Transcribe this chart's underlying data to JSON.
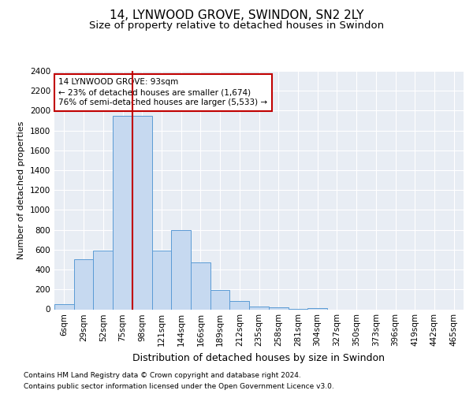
{
  "title1": "14, LYNWOOD GROVE, SWINDON, SN2 2LY",
  "title2": "Size of property relative to detached houses in Swindon",
  "xlabel": "Distribution of detached houses by size in Swindon",
  "ylabel": "Number of detached properties",
  "footnote1": "Contains HM Land Registry data © Crown copyright and database right 2024.",
  "footnote2": "Contains public sector information licensed under the Open Government Licence v3.0.",
  "categories": [
    "6sqm",
    "29sqm",
    "52sqm",
    "75sqm",
    "98sqm",
    "121sqm",
    "144sqm",
    "166sqm",
    "189sqm",
    "212sqm",
    "235sqm",
    "258sqm",
    "281sqm",
    "304sqm",
    "327sqm",
    "350sqm",
    "373sqm",
    "396sqm",
    "419sqm",
    "442sqm",
    "465sqm"
  ],
  "values": [
    50,
    500,
    590,
    1950,
    1950,
    590,
    800,
    470,
    195,
    80,
    25,
    20,
    5,
    10,
    0,
    0,
    0,
    0,
    0,
    0,
    0
  ],
  "bar_color": "#c6d9f0",
  "bar_edge_color": "#5b9bd5",
  "vline_x_index": 4,
  "vline_color": "#c00000",
  "annotation_title": "14 LYNWOOD GROVE: 93sqm",
  "annotation_line2": "← 23% of detached houses are smaller (1,674)",
  "annotation_line3": "76% of semi-detached houses are larger (5,533) →",
  "annotation_box_color": "#c00000",
  "ylim": [
    0,
    2400
  ],
  "yticks": [
    0,
    200,
    400,
    600,
    800,
    1000,
    1200,
    1400,
    1600,
    1800,
    2000,
    2200,
    2400
  ],
  "bg_color": "#e8edf4",
  "fig_bg": "#ffffff",
  "title1_fontsize": 11,
  "title2_fontsize": 9.5,
  "xlabel_fontsize": 9,
  "ylabel_fontsize": 8,
  "tick_fontsize": 7.5,
  "footnote_fontsize": 6.5,
  "annotation_fontsize": 7.5
}
